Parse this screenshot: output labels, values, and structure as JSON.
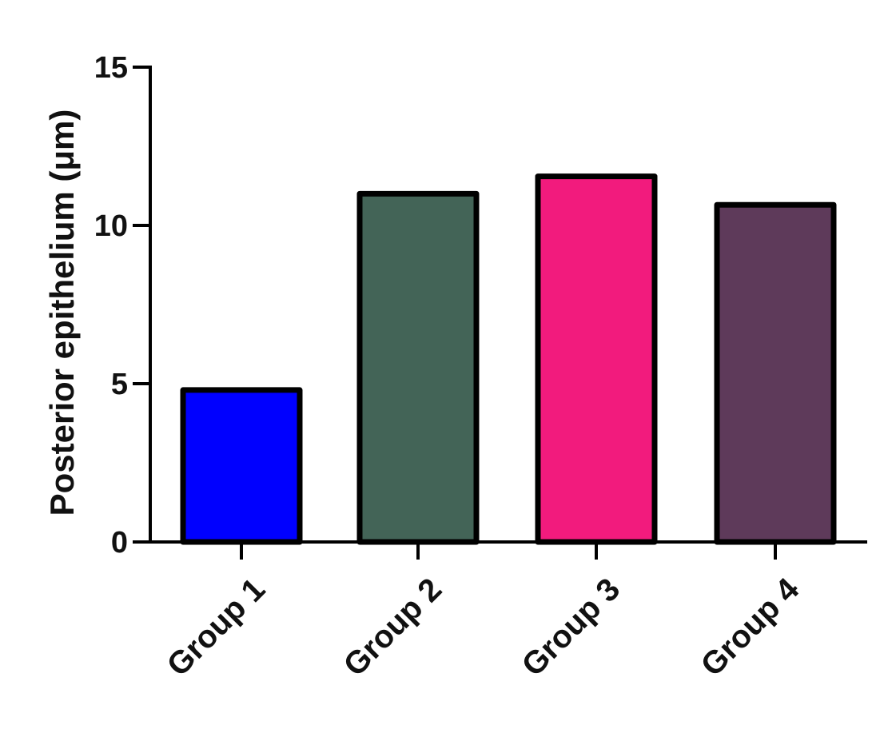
{
  "chart_data": {
    "type": "bar",
    "title": "",
    "xlabel": "",
    "ylabel": "Posterior epithelium (μm)",
    "categories": [
      "Group 1",
      "Group 2",
      "Group 3",
      "Group 4"
    ],
    "values": [
      4.8,
      11.0,
      11.55,
      10.65
    ],
    "ylim": [
      0,
      15
    ],
    "yticks": [
      0,
      5,
      10,
      15
    ],
    "ytick_labels": [
      "0",
      "5",
      "10",
      "15"
    ],
    "grid": false,
    "legend": "none",
    "colors": [
      "#0000ff",
      "#436457",
      "#f21b7d",
      "#5e3a5a"
    ],
    "edge_color": "#000000"
  }
}
